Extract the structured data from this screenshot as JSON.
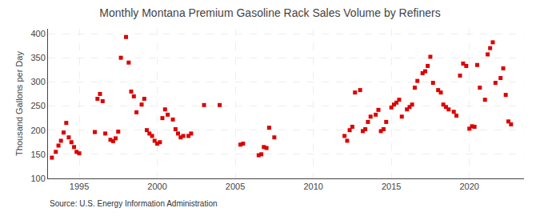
{
  "chart_data": {
    "type": "scatter",
    "title": "Monthly Montana Premium Gasoline Rack Sales Volume by Refiners",
    "ylabel": "Thousand Gallons per Day",
    "annotations": [
      "Source: U.S. Energy Information Administration"
    ],
    "color": "#dd0000",
    "marker": "square",
    "grid": true,
    "xlim": [
      1993.0,
      2023.5
    ],
    "ylim": [
      100,
      410
    ],
    "xticks": [
      1995,
      2000,
      2005,
      2010,
      2015,
      2020
    ],
    "yticks": [
      100,
      150,
      200,
      250,
      300,
      350,
      400
    ],
    "x": [
      1993.25,
      1993.5,
      1993.67,
      1993.83,
      1994.0,
      1994.17,
      1994.33,
      1994.5,
      1994.67,
      1994.83,
      1995.0,
      1996.0,
      1996.17,
      1996.33,
      1996.5,
      1996.67,
      1997.0,
      1997.17,
      1997.33,
      1997.5,
      1997.67,
      1998.0,
      1998.17,
      1998.33,
      1998.5,
      1998.67,
      1999.0,
      1999.17,
      1999.33,
      1999.5,
      1999.67,
      1999.83,
      2000.0,
      2000.17,
      2000.33,
      2000.5,
      2000.67,
      2001.0,
      2001.17,
      2001.33,
      2001.5,
      2001.67,
      2002.0,
      2002.17,
      2003.0,
      2004.0,
      2005.33,
      2005.5,
      2006.5,
      2006.67,
      2006.83,
      2007.0,
      2007.17,
      2007.5,
      2012.0,
      2012.17,
      2012.33,
      2012.5,
      2012.67,
      2013.0,
      2013.17,
      2013.33,
      2013.5,
      2013.67,
      2014.0,
      2014.17,
      2014.33,
      2014.5,
      2014.67,
      2015.0,
      2015.17,
      2015.33,
      2015.5,
      2015.67,
      2016.0,
      2016.17,
      2016.33,
      2016.5,
      2016.67,
      2017.0,
      2017.17,
      2017.33,
      2017.5,
      2017.67,
      2018.0,
      2018.17,
      2018.33,
      2018.5,
      2018.67,
      2019.0,
      2019.17,
      2019.4,
      2019.6,
      2019.8,
      2020.0,
      2020.17,
      2020.33,
      2020.5,
      2020.67,
      2021.0,
      2021.17,
      2021.33,
      2021.5,
      2021.67,
      2022.0,
      2022.17,
      2022.33,
      2022.5,
      2022.67
    ],
    "values": [
      143,
      155,
      168,
      178,
      195,
      215,
      185,
      175,
      165,
      155,
      152,
      196,
      265,
      275,
      260,
      193,
      180,
      177,
      183,
      197,
      350,
      393,
      340,
      280,
      270,
      237,
      253,
      265,
      200,
      193,
      188,
      178,
      172,
      175,
      225,
      243,
      232,
      222,
      202,
      193,
      185,
      188,
      188,
      193,
      252,
      252,
      170,
      172,
      148,
      150,
      165,
      163,
      205,
      185,
      188,
      178,
      200,
      207,
      278,
      283,
      198,
      202,
      217,
      228,
      232,
      242,
      198,
      202,
      217,
      247,
      253,
      257,
      263,
      228,
      243,
      248,
      253,
      288,
      302,
      318,
      322,
      333,
      352,
      298,
      283,
      278,
      253,
      248,
      243,
      238,
      230,
      313,
      338,
      333,
      203,
      208,
      207,
      335,
      288,
      263,
      357,
      370,
      382,
      298,
      308,
      328,
      273,
      218,
      212
    ]
  }
}
